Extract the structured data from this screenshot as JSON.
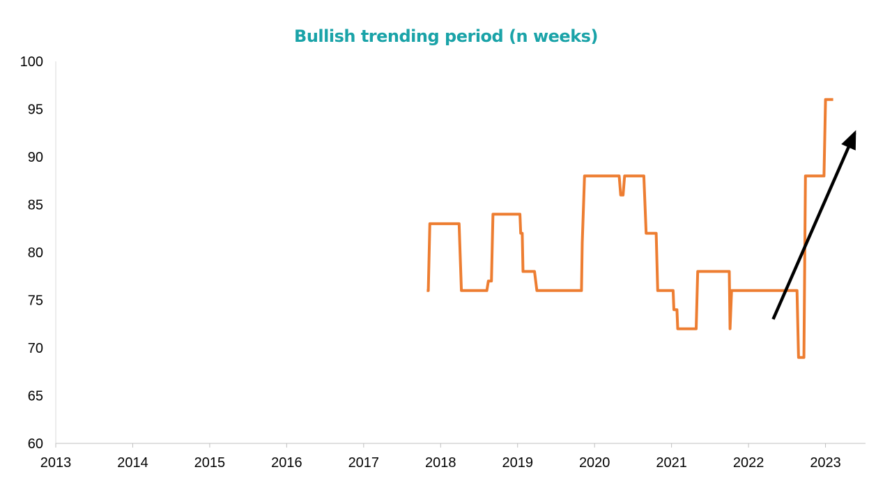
{
  "chart_data": {
    "type": "line",
    "title": "Bullish trending period (n weeks)",
    "xlabel": "",
    "ylabel": "",
    "xlim": [
      2013,
      2023.52
    ],
    "ylim": [
      60,
      100
    ],
    "y_ticks": [
      60,
      65,
      70,
      75,
      80,
      85,
      90,
      95,
      100
    ],
    "x_ticks": [
      2013,
      2014,
      2015,
      2016,
      2017,
      2018,
      2019,
      2020,
      2021,
      2022,
      2023
    ],
    "x_tick_labels": [
      "2013",
      "2014",
      "2015",
      "2016",
      "2017",
      "2018",
      "2019",
      "2020",
      "2021",
      "2022",
      "2023"
    ],
    "grid": false,
    "legend": "none",
    "series": [
      {
        "color": "#ed7d31",
        "x": [
          2017.82,
          2017.84,
          2017.86,
          2018.24,
          2018.27,
          2018.6,
          2018.62,
          2018.66,
          2018.68,
          2019.03,
          2019.04,
          2019.06,
          2019.07,
          2019.22,
          2019.25,
          2019.83,
          2019.84,
          2019.87,
          2020.32,
          2020.34,
          2020.37,
          2020.39,
          2020.64,
          2020.67,
          2020.8,
          2020.82,
          2021.02,
          2021.03,
          2021.07,
          2021.08,
          2021.32,
          2021.34,
          2021.75,
          2021.76,
          2021.78,
          2022.63,
          2022.65,
          2022.72,
          2022.74,
          2022.98,
          2023.0,
          2023.06,
          2023.1
        ],
        "y": [
          76,
          76,
          83,
          83,
          76,
          76,
          77,
          77,
          84,
          84,
          82,
          82,
          78,
          78,
          76,
          76,
          81,
          88,
          88,
          86,
          86,
          88,
          88,
          82,
          82,
          76,
          76,
          74,
          74,
          72,
          72,
          78,
          78,
          72,
          76,
          76,
          69,
          69,
          88,
          88,
          96,
          96,
          96
        ]
      }
    ],
    "annotations": [
      {
        "type": "arrow",
        "color": "#000000",
        "from": [
          2022.32,
          73
        ],
        "to": [
          2023.38,
          92.5
        ]
      }
    ]
  }
}
